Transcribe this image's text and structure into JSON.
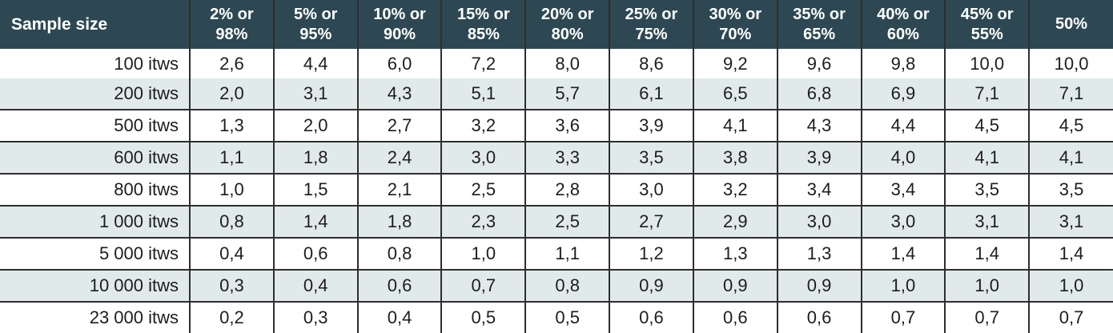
{
  "colors": {
    "header_bg": "#2d4853",
    "header_text": "#ffffff",
    "row_bg": "#ffffff",
    "row_alt_bg": "#e1eaeb",
    "border": "#2e2e2e",
    "text": "#1d1d1d"
  },
  "chart_data": {
    "type": "table",
    "columns": [
      "Sample size",
      "2% or 98%",
      "5% or 95%",
      "10% or 90%",
      "15% or 85%",
      "20% or 80%",
      "25% or 75%",
      "30% or 70%",
      "35% or 65%",
      "40% or 60%",
      "45% or 55%",
      "50%"
    ],
    "rows": [
      {
        "label": "100 itws",
        "values": [
          "2,6",
          "4,4",
          "6,0",
          "7,2",
          "8,0",
          "8,6",
          "9,2",
          "9,6",
          "9,8",
          "10,0",
          "10,0"
        ]
      },
      {
        "label": "200 itws",
        "values": [
          "2,0",
          "3,1",
          "4,3",
          "5,1",
          "5,7",
          "6,1",
          "6,5",
          "6,8",
          "6,9",
          "7,1",
          "7,1"
        ]
      },
      {
        "label": "500 itws",
        "values": [
          "1,3",
          "2,0",
          "2,7",
          "3,2",
          "3,6",
          "3,9",
          "4,1",
          "4,3",
          "4,4",
          "4,5",
          "4,5"
        ]
      },
      {
        "label": "600 itws",
        "values": [
          "1,1",
          "1,8",
          "2,4",
          "3,0",
          "3,3",
          "3,5",
          "3,8",
          "3,9",
          "4,0",
          "4,1",
          "4,1"
        ]
      },
      {
        "label": "800 itws",
        "values": [
          "1,0",
          "1,5",
          "2,1",
          "2,5",
          "2,8",
          "3,0",
          "3,2",
          "3,4",
          "3,4",
          "3,5",
          "3,5"
        ]
      },
      {
        "label": "1 000 itws",
        "values": [
          "0,8",
          "1,4",
          "1,8",
          "2,3",
          "2,5",
          "2,7",
          "2,9",
          "3,0",
          "3,0",
          "3,1",
          "3,1"
        ]
      },
      {
        "label": "5 000 itws",
        "values": [
          "0,4",
          "0,6",
          "0,8",
          "1,0",
          "1,1",
          "1,2",
          "1,3",
          "1,3",
          "1,4",
          "1,4",
          "1,4"
        ]
      },
      {
        "label": "10 000 itws",
        "values": [
          "0,3",
          "0,4",
          "0,6",
          "0,7",
          "0,8",
          "0,9",
          "0,9",
          "0,9",
          "1,0",
          "1,0",
          "1,0"
        ]
      },
      {
        "label": "23 000 itws",
        "values": [
          "0,2",
          "0,3",
          "0,4",
          "0,5",
          "0,5",
          "0,6",
          "0,6",
          "0,6",
          "0,7",
          "0,7",
          "0,7"
        ]
      }
    ]
  }
}
